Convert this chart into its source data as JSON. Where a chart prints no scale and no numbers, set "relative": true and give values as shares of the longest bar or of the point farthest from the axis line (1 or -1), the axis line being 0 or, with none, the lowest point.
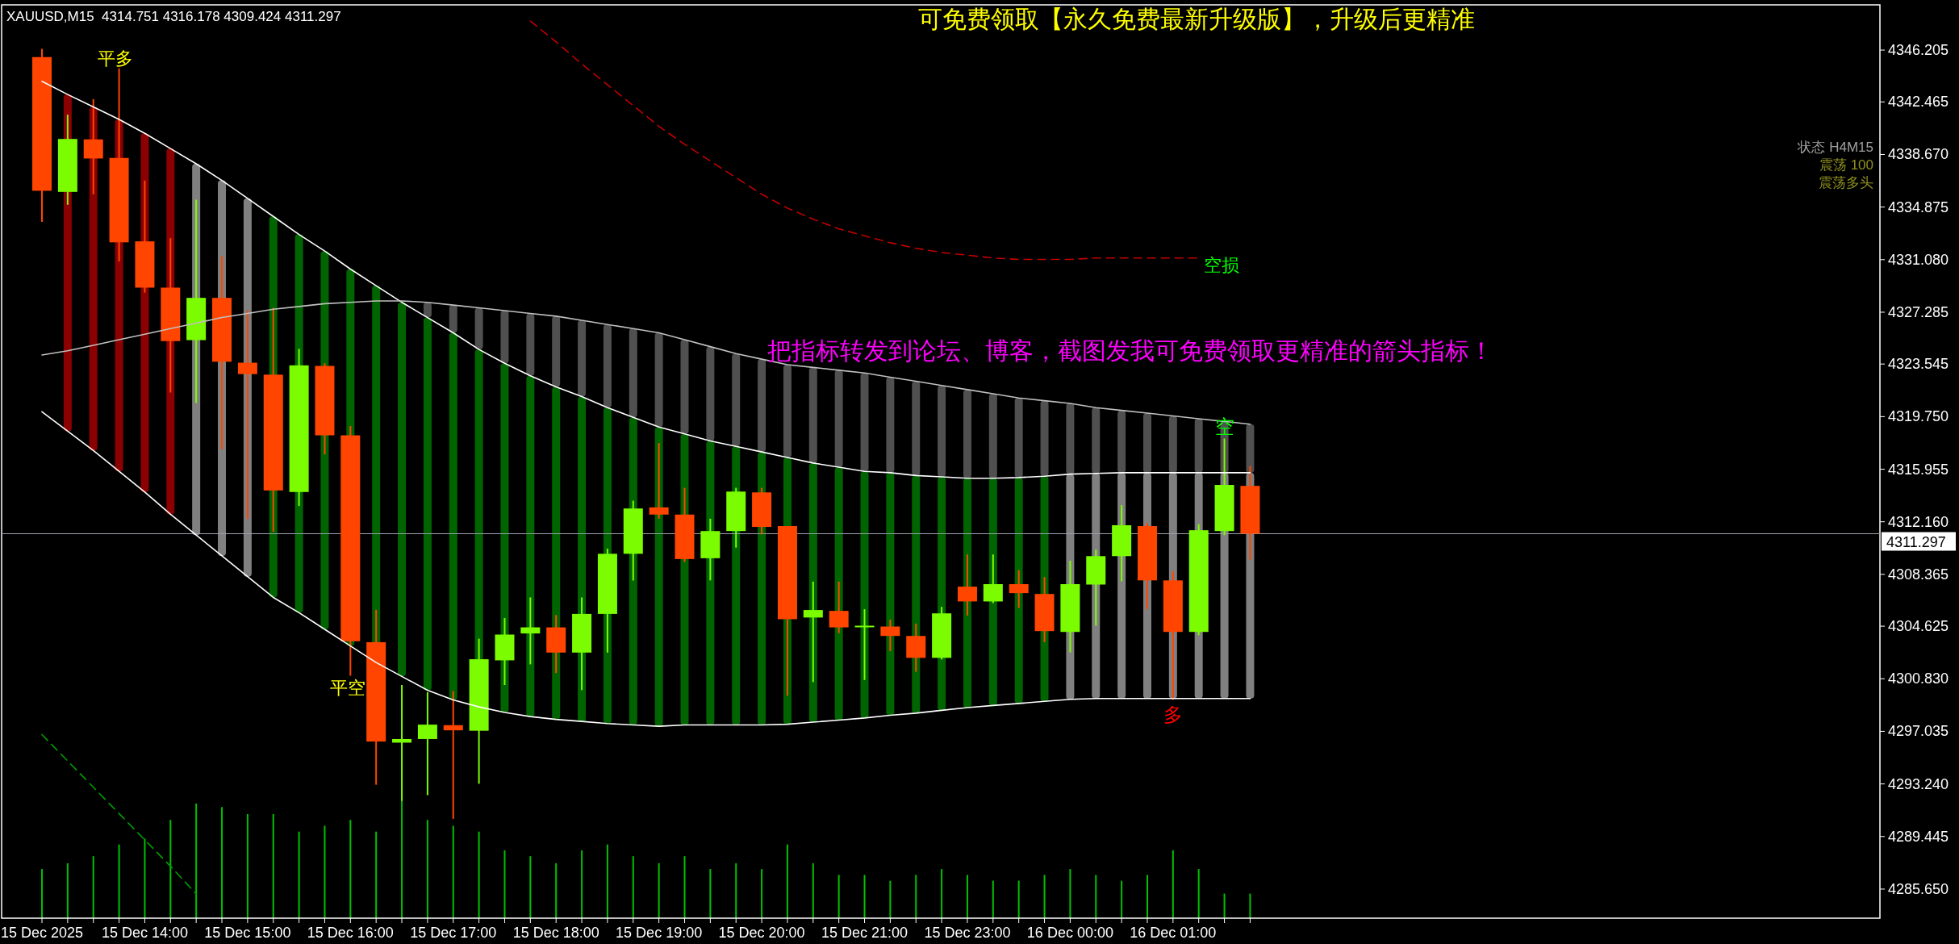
{
  "chart_data": [
    {
      "type": "candlestick",
      "title": "XAUUSD,M15  4314.751 4316.178 4309.424 4311.297",
      "categories": [
        "15 Dec 2025",
        null,
        null,
        null,
        "15 Dec 14:00",
        null,
        null,
        null,
        "15 Dec 15:00",
        null,
        null,
        null,
        "15 Dec 16:00",
        null,
        null,
        null,
        "15 Dec 17:00",
        null,
        null,
        null,
        "15 Dec 18:00",
        null,
        null,
        null,
        "15 Dec 19:00",
        null,
        null,
        null,
        "15 Dec 20:00",
        null,
        null,
        null,
        "15 Dec 21:00",
        null,
        null,
        null,
        "15 Dec 23:00",
        null,
        null,
        null,
        "16 Dec 00:00",
        null,
        null,
        null,
        "16 Dec 01:00",
        null,
        null,
        null
      ],
      "ohlc": [
        [
          4345.7,
          4346.3,
          4333.8,
          4336.05
        ],
        [
          4335.97,
          4341.54,
          4335.04,
          4339.79
        ],
        [
          4339.76,
          4342.66,
          4335.79,
          4338.38
        ],
        [
          4338.42,
          4344.89,
          4330.95,
          4332.33
        ],
        [
          4332.4,
          4336.79,
          4328.7,
          4329.06
        ],
        [
          4329.06,
          4332.63,
          4321.49,
          4325.2
        ],
        [
          4325.27,
          4335.41,
          4320.74,
          4328.32
        ],
        [
          4328.32,
          4331.33,
          4317.4,
          4323.71
        ],
        [
          4323.64,
          4327.43,
          4312.38,
          4322.82
        ],
        [
          4322.78,
          4327.6,
          4311.45,
          4314.42
        ],
        [
          4314.31,
          4324.64,
          4313.31,
          4323.45
        ],
        [
          4323.41,
          4323.6,
          4317.02,
          4318.4
        ],
        [
          4318.4,
          4319.07,
          4301.05,
          4303.54
        ],
        [
          4303.47,
          4305.8,
          4293.18,
          4296.3
        ],
        [
          4296.22,
          4300.38,
          4292.0,
          4296.48
        ],
        [
          4296.48,
          4299.86,
          4292.43,
          4297.52
        ],
        [
          4297.48,
          4299.94,
          4290.72,
          4297.11
        ],
        [
          4297.08,
          4303.72,
          4293.25,
          4302.24
        ],
        [
          4302.16,
          4305.21,
          4300.38,
          4304.02
        ],
        [
          4304.1,
          4306.7,
          4301.87,
          4304.54
        ],
        [
          4304.54,
          4305.43,
          4301.24,
          4302.72
        ],
        [
          4302.72,
          4306.7,
          4300.01,
          4305.51
        ],
        [
          4305.51,
          4310.22,
          4302.72,
          4309.85
        ],
        [
          4309.85,
          4313.68,
          4307.92,
          4313.12
        ],
        [
          4313.2,
          4317.84,
          4312.38,
          4312.68
        ],
        [
          4312.68,
          4314.61,
          4309.26,
          4309.47
        ],
        [
          4309.53,
          4312.38,
          4307.93,
          4311.49
        ],
        [
          4311.49,
          4314.61,
          4310.3,
          4314.34
        ],
        [
          4314.28,
          4314.61,
          4311.25,
          4311.79
        ],
        [
          4311.85,
          4311.85,
          4299.61,
          4305.13
        ],
        [
          4305.25,
          4307.84,
          4300.59,
          4305.79
        ],
        [
          4305.73,
          4307.84,
          4304.12,
          4304.54
        ],
        [
          4304.6,
          4305.85,
          4300.74,
          4304.66
        ],
        [
          4304.6,
          4305.1,
          4302.82,
          4303.92
        ],
        [
          4303.92,
          4304.81,
          4301.33,
          4302.34
        ],
        [
          4302.34,
          4306.02,
          4302.22,
          4305.55
        ],
        [
          4307.48,
          4309.8,
          4305.4,
          4306.41
        ],
        [
          4306.41,
          4309.8,
          4306.29,
          4307.66
        ],
        [
          4307.66,
          4308.67,
          4305.94,
          4307.01
        ],
        [
          4306.95,
          4308.17,
          4303.47,
          4304.27
        ],
        [
          4304.21,
          4309.35,
          4302.73,
          4307.66
        ],
        [
          4307.63,
          4310.15,
          4304.66,
          4309.68
        ],
        [
          4309.68,
          4313.36,
          4307.87,
          4311.91
        ],
        [
          4311.85,
          4312.08,
          4305.85,
          4307.93
        ],
        [
          4307.93,
          4308.58,
          4299.31,
          4304.21
        ],
        [
          4304.21,
          4311.99,
          4303.97,
          4311.55
        ],
        [
          4311.49,
          4318.17,
          4311.19,
          4314.82
        ],
        [
          4314.751,
          4316.178,
          4309.424,
          4311.297
        ]
      ],
      "colors": [
        "#ff4500",
        "#7cfc00",
        "#ff4500",
        "#ff4500",
        "#ff4500",
        "#ff4500",
        "#7cfc00",
        "#ff4500",
        "#ff4500",
        "#ff4500",
        "#7cfc00",
        "#ff4500",
        "#ff4500",
        "#ff4500",
        "#7cfc00",
        "#7cfc00",
        "#ff4500",
        "#7cfc00",
        "#7cfc00",
        "#7cfc00",
        "#ff4500",
        "#7cfc00",
        "#7cfc00",
        "#7cfc00",
        "#ff4500",
        "#ff4500",
        "#7cfc00",
        "#7cfc00",
        "#ff4500",
        "#ff4500",
        "#7cfc00",
        "#ff4500",
        "#7cfc00",
        "#ff4500",
        "#ff4500",
        "#7cfc00",
        "#ff4500",
        "#7cfc00",
        "#ff4500",
        "#ff4500",
        "#7cfc00",
        "#7cfc00",
        "#7cfc00",
        "#ff4500",
        "#ff4500",
        "#7cfc00",
        "#7cfc00",
        "#ff4500"
      ],
      "series": [
        {
          "type": "bar",
          "colors": [
            null,
            "#8b0000",
            "#8b0000",
            "#8b0000",
            "#8b0000",
            "#8b0000",
            "#808080",
            "#808080",
            "#808080",
            "#006400",
            "#006400",
            "#006400",
            "#006400",
            "#006400",
            "#006400",
            "#006400",
            "#006400",
            "#006400",
            "#006400",
            "#006400",
            "#006400",
            "#006400",
            "#006400",
            "#006400",
            "#006400",
            "#006400",
            "#006400",
            "#006400",
            "#006400",
            "#006400",
            "#006400",
            "#006400",
            "#006400",
            "#006400",
            "#006400",
            "#006400",
            "#006400",
            "#006400",
            "#006400",
            "#006400",
            "#808080",
            "#808080",
            "#808080",
            "#808080",
            "#808080",
            "#808080",
            "#808080",
            "#808080"
          ],
          "base": [
            null,
            4318.7,
            4317.3,
            4315.8,
            4314.3,
            4312.7,
            4311.2,
            4309.7,
            4308.2,
            4306.7,
            4305.6,
            4304.4,
            4303.2,
            4302.0,
            4301.0,
            4300.0,
            4299.3,
            4298.8,
            4298.4,
            4298.1,
            4297.9,
            4297.75,
            4297.6,
            4297.5,
            4297.4,
            4297.5,
            4297.5,
            4297.5,
            4297.5,
            4297.55,
            4297.7,
            4297.85,
            4298.0,
            4298.2,
            4298.35,
            4298.55,
            4298.75,
            4298.9,
            4299.05,
            4299.2,
            4299.35,
            4299.4,
            4299.4,
            4299.4,
            4299.4,
            4299.4,
            4299.4,
            4299.4
          ],
          "values": [
            null,
            24.3,
            24.8,
            25.4,
            25.9,
            26.4,
            26.8,
            27.1,
            27.3,
            27.5,
            27.3,
            27.3,
            27.2,
            27.2,
            27.0,
            26.9,
            26.5,
            25.8,
            25.2,
            24.6,
            24.0,
            23.45,
            22.8,
            22.2,
            21.6,
            21.0,
            20.5,
            20.1,
            19.7,
            19.25,
            18.7,
            18.25,
            17.8,
            17.5,
            17.15,
            16.85,
            16.55,
            16.4,
            16.3,
            16.25,
            16.25,
            16.25,
            16.3,
            16.3,
            16.3,
            16.3,
            16.3,
            16.3
          ]
        },
        {
          "type": "bar",
          "color": "#505050",
          "base": [
            null,
            null,
            null,
            null,
            null,
            null,
            null,
            null,
            null,
            null,
            null,
            null,
            null,
            null,
            null,
            4326.9,
            4325.8,
            4324.6,
            4323.6,
            4322.7,
            4321.9,
            4321.2,
            4320.4,
            4319.7,
            4319.0,
            4318.5,
            4318.0,
            4317.6,
            4317.2,
            4316.8,
            4316.4,
            4316.1,
            4315.8,
            4315.7,
            4315.5,
            4315.4,
            4315.3,
            4315.3,
            4315.35,
            4315.45,
            4315.6,
            4315.65,
            4315.7,
            4315.7,
            4315.7,
            4315.7,
            4315.7,
            4315.7
          ],
          "values": [
            null,
            null,
            null,
            null,
            null,
            null,
            null,
            null,
            null,
            null,
            null,
            null,
            null,
            null,
            null,
            1.1,
            2.0,
            3.0,
            3.8,
            4.5,
            5.1,
            5.5,
            6.0,
            6.4,
            6.8,
            6.8,
            6.8,
            6.7,
            6.7,
            6.7,
            6.9,
            7.0,
            7.1,
            6.9,
            6.8,
            6.6,
            6.4,
            6.1,
            5.75,
            5.45,
            5.1,
            4.75,
            4.5,
            4.3,
            4.1,
            3.9,
            3.7,
            3.5
          ]
        },
        {
          "type": "line",
          "color": "#ffffff",
          "values": [
            4343.95,
            4343.0,
            4342.1,
            4341.2,
            4340.2,
            4339.1,
            4338.0,
            4336.8,
            4335.5,
            4334.2,
            4332.9,
            4331.7,
            4330.4,
            4329.2,
            4328.0,
            4326.9,
            4325.8,
            4324.6,
            4323.6,
            4322.7,
            4321.9,
            4321.2,
            4320.4,
            4319.7,
            4319.0,
            4318.5,
            4318.0,
            4317.6,
            4317.2,
            4316.8,
            4316.4,
            4316.1,
            4315.8,
            4315.7,
            4315.5,
            4315.4,
            4315.3,
            4315.3,
            4315.35,
            4315.45,
            4315.6,
            4315.65,
            4315.7,
            4315.7,
            4315.7,
            4315.7,
            4315.7,
            4315.7
          ]
        },
        {
          "type": "line",
          "color": "#c0c0c0",
          "values": [
            4324.2,
            4324.5,
            4324.9,
            4325.3,
            4325.7,
            4326.1,
            4326.5,
            4326.9,
            4327.2,
            4327.5,
            4327.7,
            4327.9,
            4328.0,
            4328.1,
            4328.1,
            4328.0,
            4327.8,
            4327.6,
            4327.4,
            4327.2,
            4327.0,
            4326.7,
            4326.4,
            4326.1,
            4325.8,
            4325.3,
            4324.8,
            4324.3,
            4323.9,
            4323.5,
            4323.3,
            4323.1,
            4322.9,
            4322.6,
            4322.3,
            4322.0,
            4321.7,
            4321.4,
            4321.1,
            4320.9,
            4320.7,
            4320.4,
            4320.2,
            4320.0,
            4319.8,
            4319.6,
            4319.4,
            4319.2
          ]
        },
        {
          "type": "line",
          "color": "#ffffff",
          "values": [
            4320.1,
            4318.7,
            4317.3,
            4315.8,
            4314.3,
            4312.7,
            4311.2,
            4309.7,
            4308.2,
            4306.7,
            4305.6,
            4304.4,
            4303.2,
            4302.0,
            4301.0,
            4300.0,
            4299.3,
            4298.8,
            4298.4,
            4298.1,
            4297.9,
            4297.75,
            4297.6,
            4297.5,
            4297.4,
            4297.5,
            4297.5,
            4297.5,
            4297.5,
            4297.55,
            4297.7,
            4297.85,
            4298.0,
            4298.2,
            4298.35,
            4298.55,
            4298.75,
            4298.9,
            4299.05,
            4299.2,
            4299.35,
            4299.4,
            4299.4,
            4299.4,
            4299.4,
            4299.4,
            4299.4,
            4299.4
          ]
        },
        {
          "type": "line",
          "color": "#c00000",
          "line_style": "dashed",
          "values": [
            null,
            null,
            null,
            null,
            null,
            null,
            null,
            null,
            null,
            null,
            null,
            null,
            null,
            null,
            null,
            null,
            null,
            null,
            null,
            4348.3,
            4346.8,
            4345.2,
            4343.7,
            4342.2,
            4340.7,
            4339.4,
            4338.2,
            4337.0,
            4335.8,
            4334.8,
            4334.0,
            4333.3,
            4332.8,
            4332.3,
            4331.9,
            4331.6,
            4331.4,
            4331.2,
            4331.1,
            4331.1,
            4331.1,
            4331.2,
            4331.2,
            4331.2,
            4331.2,
            4331.2,
            null,
            null
          ]
        },
        {
          "type": "line",
          "color": "#00a000",
          "line_style": "dashed",
          "values": [
            4296.8,
            4294.9,
            4293.0,
            4291.1,
            4289.2,
            4287.3,
            4285.3,
            null,
            null,
            null,
            null,
            null,
            null,
            null,
            null,
            null,
            null,
            null,
            null,
            null,
            null,
            null,
            null,
            null,
            null,
            null,
            null,
            null,
            null,
            null,
            null,
            null,
            null,
            null,
            null,
            null,
            null,
            null,
            null,
            null,
            null,
            null,
            null,
            null,
            null,
            null,
            null,
            null
          ]
        }
      ],
      "ylim": [
        4283.55,
        4349.47
      ],
      "yticks": [
        4346.205,
        4342.465,
        {
          "value": 4338.67,
          "label": "4338.670"
        },
        4334.875,
        {
          "value": 4331.08,
          "label": "4331.080"
        },
        4327.285,
        4323.545,
        {
          "value": 4319.75,
          "label": "4319.750"
        },
        4315.955,
        {
          "value": 4312.16,
          "label": "4312.160"
        },
        4308.365,
        4304.625,
        {
          "value": 4300.83,
          "label": "4300.830"
        },
        4297.035,
        {
          "value": 4293.24,
          "label": "4293.240"
        },
        4289.445,
        {
          "value": 4285.65,
          "label": "4285.650"
        }
      ],
      "ref_lines": [
        {
          "axis": "y",
          "value": 4311.297,
          "label": "4311.297",
          "color": "#a0a0b0"
        }
      ],
      "annotations": [
        "可免费领取【永久免费最新升级版】，升级后更精准",
        "把指标转发到论坛、博客，截图发我可免费领取更精准的箭头指标！",
        "状态 H4M15",
        "震荡 100",
        "震荡多头",
        "平多",
        "平空",
        "空",
        "多",
        "空损"
      ]
    },
    {
      "type": "bar",
      "relative": true,
      "color": "#00c000",
      "categories": [
        null,
        null,
        null,
        null,
        null,
        null,
        null,
        null,
        null,
        null,
        null,
        null,
        null,
        null,
        null,
        null,
        null,
        null,
        null,
        null,
        null,
        null,
        null,
        null,
        null,
        null,
        null,
        null,
        null,
        null,
        null,
        null,
        null,
        null,
        null,
        null,
        null,
        null,
        null,
        null,
        null,
        null,
        null,
        null,
        null,
        null,
        null,
        null
      ],
      "values": [
        0.42,
        0.47,
        0.53,
        0.63,
        0.68,
        0.84,
        0.98,
        0.95,
        0.89,
        0.89,
        0.74,
        0.79,
        0.84,
        0.74,
        1,
        0.84,
        0.79,
        0.74,
        0.58,
        0.53,
        0.47,
        0.58,
        0.63,
        0.53,
        0.47,
        0.53,
        0.42,
        0.47,
        0.42,
        0.63,
        0.47,
        0.37,
        0.37,
        0.32,
        0.37,
        0.42,
        0.37,
        0.32,
        0.32,
        0.37,
        0.42,
        0.37,
        0.32,
        0.37,
        0.58,
        0.42,
        0.21,
        0.21
      ]
    }
  ]
}
